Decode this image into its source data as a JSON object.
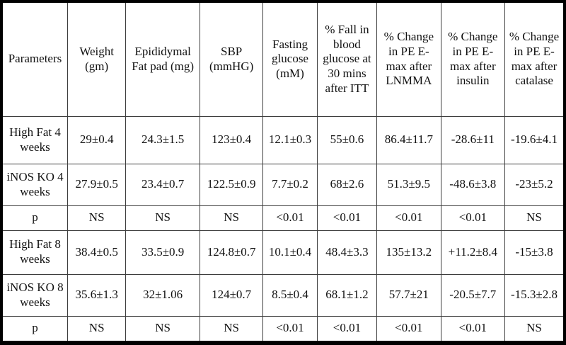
{
  "table": {
    "columns": [
      "Parameters",
      "Weight (gm)",
      "Epididymal Fat pad (mg)",
      "SBP (mmHG)",
      "Fasting glucose (mM)",
      "% Fall in blood glucose at 30 mins after ITT",
      "% Change in PE E-max after LNMMA",
      "% Change in PE E-max after insulin",
      "% Change in PE E-max after catalase"
    ],
    "rows": [
      {
        "label": "High Fat 4 weeks",
        "values": [
          "29±0.4",
          "24.3±1.5",
          "123±0.4",
          "12.1±0.3",
          "55±0.6",
          "86.4±11.7",
          "-28.6±11",
          "-19.6±4.1"
        ]
      },
      {
        "label": "iNOS KO 4 weeks",
        "values": [
          "27.9±0.5",
          "23.4±0.7",
          "122.5±0.9",
          "7.7±0.2",
          "68±2.6",
          "51.3±9.5",
          "-48.6±3.8",
          "-23±5.2"
        ]
      },
      {
        "label": "p",
        "values": [
          "NS",
          "NS",
          "NS",
          "<0.01",
          "<0.01",
          "<0.01",
          "<0.01",
          "NS"
        ]
      },
      {
        "label": "High Fat 8 weeks",
        "values": [
          "38.4±0.5",
          "33.5±0.9",
          "124.8±0.7",
          "10.1±0.4",
          "48.4±3.3",
          "135±13.2",
          "+11.2±8.4",
          "-15±3.8"
        ]
      },
      {
        "label": "iNOS KO 8 weeks",
        "values": [
          "35.6±1.3",
          "32±1.06",
          "124±0.7",
          "8.5±0.4",
          "68.1±1.2",
          "57.7±21",
          "-20.5±7.7",
          "-15.3±2.8"
        ]
      },
      {
        "label": "p",
        "values": [
          "NS",
          "NS",
          "NS",
          "<0.01",
          "<0.01",
          "<0.01",
          "<0.01",
          "NS"
        ]
      }
    ]
  },
  "colors": {
    "outer_border": "#000000",
    "inner_border": "#3d3d3d",
    "text": "#111111",
    "background": "#ffffff"
  },
  "chart_data": {
    "type": "table",
    "title": "",
    "columns": [
      "Parameters",
      "Weight (gm)",
      "Epididymal Fat pad (mg)",
      "SBP (mmHG)",
      "Fasting glucose (mM)",
      "% Fall in blood glucose at 30 mins after ITT",
      "% Change in PE E-max after LNMMA",
      "% Change in PE E-max after insulin",
      "% Change in PE E-max after catalase"
    ],
    "rows": [
      [
        "High Fat 4 weeks",
        "29±0.4",
        "24.3±1.5",
        "123±0.4",
        "12.1±0.3",
        "55±0.6",
        "86.4±11.7",
        "-28.6±11",
        "-19.6±4.1"
      ],
      [
        "iNOS KO 4 weeks",
        "27.9±0.5",
        "23.4±0.7",
        "122.5±0.9",
        "7.7±0.2",
        "68±2.6",
        "51.3±9.5",
        "-48.6±3.8",
        "-23±5.2"
      ],
      [
        "p",
        "NS",
        "NS",
        "NS",
        "<0.01",
        "<0.01",
        "<0.01",
        "<0.01",
        "NS"
      ],
      [
        "High Fat 8 weeks",
        "38.4±0.5",
        "33.5±0.9",
        "124.8±0.7",
        "10.1±0.4",
        "48.4±3.3",
        "135±13.2",
        "+11.2±8.4",
        "-15±3.8"
      ],
      [
        "iNOS KO 8 weeks",
        "35.6±1.3",
        "32±1.06",
        "124±0.7",
        "8.5±0.4",
        "68.1±1.2",
        "57.7±21",
        "-20.5±7.7",
        "-15.3±2.8"
      ],
      [
        "p",
        "NS",
        "NS",
        "NS",
        "<0.01",
        "<0.01",
        "<0.01",
        "<0.01",
        "NS"
      ]
    ]
  }
}
